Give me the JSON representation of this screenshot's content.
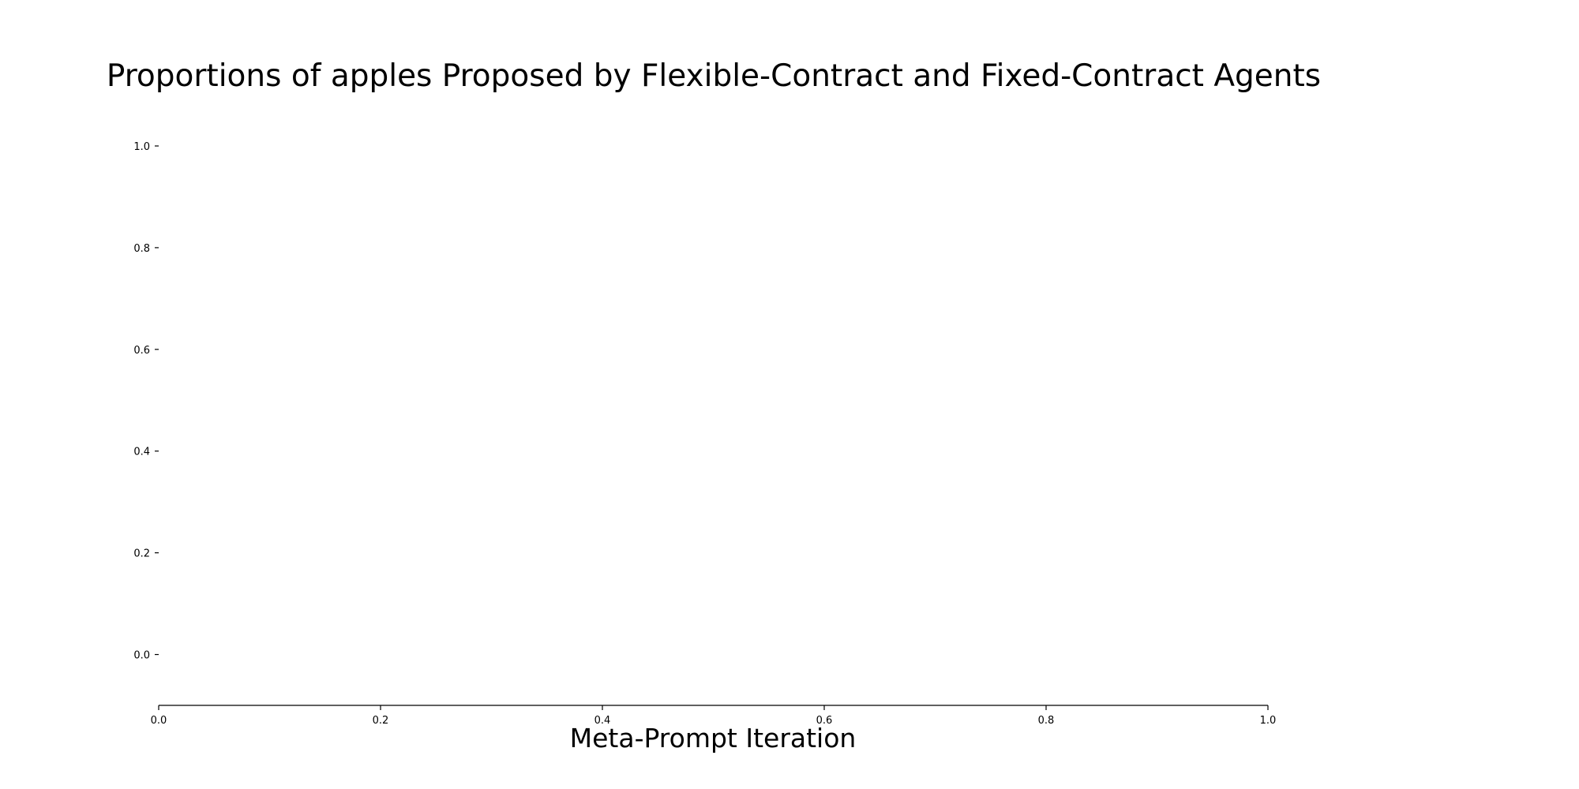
{
  "chart_data": {
    "type": "line",
    "title": "Proportions of apples Proposed by Flexible-Contract and Fixed-Contract Agents",
    "xlabel": "Meta-Prompt Iteration",
    "ylabel": "",
    "xlim": [
      0.0,
      1.0
    ],
    "ylim": [
      -0.1,
      1.0
    ],
    "x_ticks": [
      "0.0",
      "0.2",
      "0.4",
      "0.6",
      "0.8",
      "1.0"
    ],
    "y_ticks": [
      "0.0",
      "0.2",
      "0.4",
      "0.6",
      "0.8",
      "1.0"
    ],
    "series": [],
    "grid": false,
    "legend": "none"
  }
}
